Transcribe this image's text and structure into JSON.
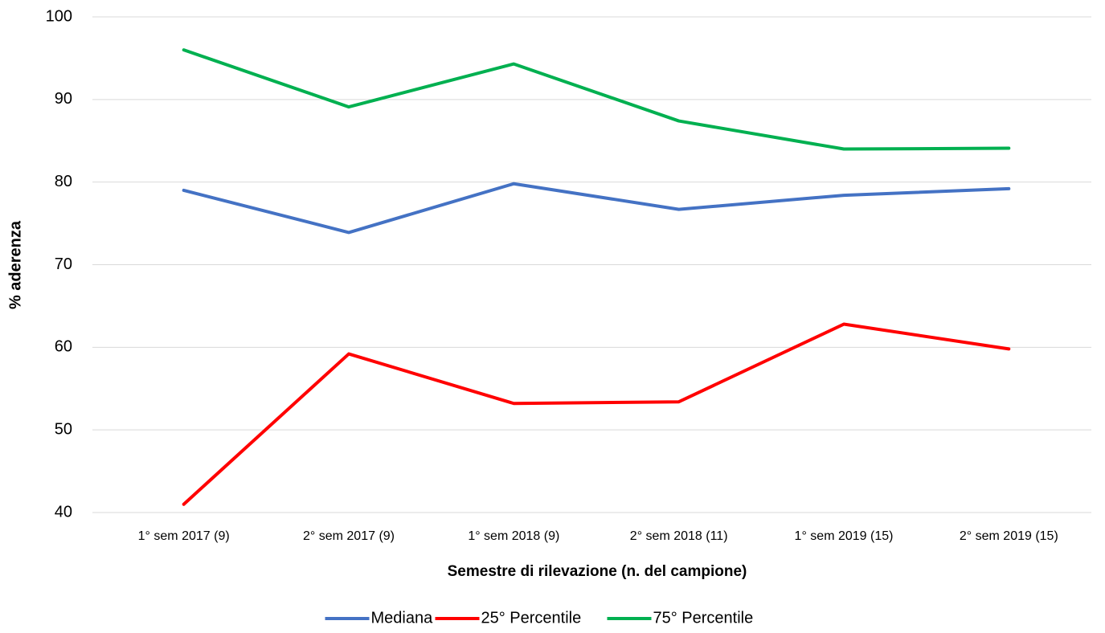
{
  "chart_data": {
    "type": "line",
    "x_label": "Semestre di rilevazione (n. del campione)",
    "y_label": "% aderenza",
    "categories": [
      "1° sem 2017 (9)",
      "2° sem 2017 (9)",
      "1° sem 2018 (9)",
      "2° sem 2018 (11)",
      "1° sem 2019 (15)",
      "2° sem 2019 (15)"
    ],
    "series": [
      {
        "name": "Mediana",
        "color": "#4472c4",
        "values": [
          79.0,
          73.9,
          79.8,
          76.7,
          78.4,
          79.2
        ]
      },
      {
        "name": "25° Percentile",
        "color": "#ff0000",
        "values": [
          41.0,
          59.2,
          53.2,
          53.4,
          62.8,
          59.8
        ]
      },
      {
        "name": "75° Percentile",
        "color": "#00b050",
        "values": [
          96.0,
          89.1,
          94.3,
          87.4,
          84.0,
          84.1
        ]
      }
    ],
    "ylim": [
      40,
      100
    ],
    "yticks": [
      40,
      50,
      60,
      70,
      80,
      90,
      100
    ],
    "grid": true,
    "legend": "bottom"
  }
}
